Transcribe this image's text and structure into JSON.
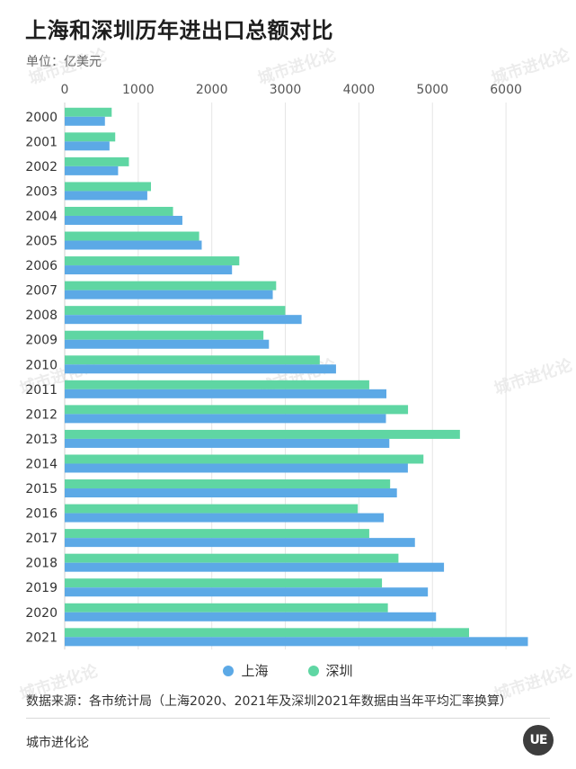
{
  "title": "上海和深圳历年进出口总额对比",
  "unit": "单位：亿美元",
  "legend": [
    {
      "label": "上海",
      "color": "#5ca9e6"
    },
    {
      "label": "深圳",
      "color": "#5fd6a3"
    }
  ],
  "source": "数据来源：各市统计局（上海2020、2021年及深圳2021年数据由当年平均汇率换算）",
  "brand": "城市进化论",
  "logo_text": "UE",
  "watermark": "城市进化论",
  "chart_data": {
    "type": "bar",
    "orientation": "horizontal",
    "title": "上海和深圳历年进出口总额对比",
    "ylabel": "单位：亿美元",
    "xlim": [
      0,
      6500
    ],
    "xticks": [
      0,
      1000,
      2000,
      3000,
      4000,
      5000,
      6000
    ],
    "grid": true,
    "legend_position": "bottom",
    "categories": [
      "2000",
      "2001",
      "2002",
      "2003",
      "2004",
      "2005",
      "2006",
      "2007",
      "2008",
      "2009",
      "2010",
      "2011",
      "2012",
      "2013",
      "2014",
      "2015",
      "2016",
      "2017",
      "2018",
      "2019",
      "2020",
      "2021"
    ],
    "series": [
      {
        "name": "深圳",
        "color": "#5fd6a3",
        "values": [
          639,
          687,
          873,
          1173,
          1473,
          1828,
          2374,
          2875,
          2999,
          2702,
          3468,
          4141,
          4668,
          5374,
          4878,
          4425,
          3985,
          4141,
          4538,
          4314,
          4394,
          5498
        ]
      },
      {
        "name": "上海",
        "color": "#5ca9e6",
        "values": [
          547,
          609,
          726,
          1123,
          1600,
          1863,
          2275,
          2829,
          3221,
          2777,
          3689,
          4374,
          4368,
          4414,
          4666,
          4517,
          4338,
          4762,
          5157,
          4938,
          5049,
          6298
        ]
      }
    ]
  }
}
